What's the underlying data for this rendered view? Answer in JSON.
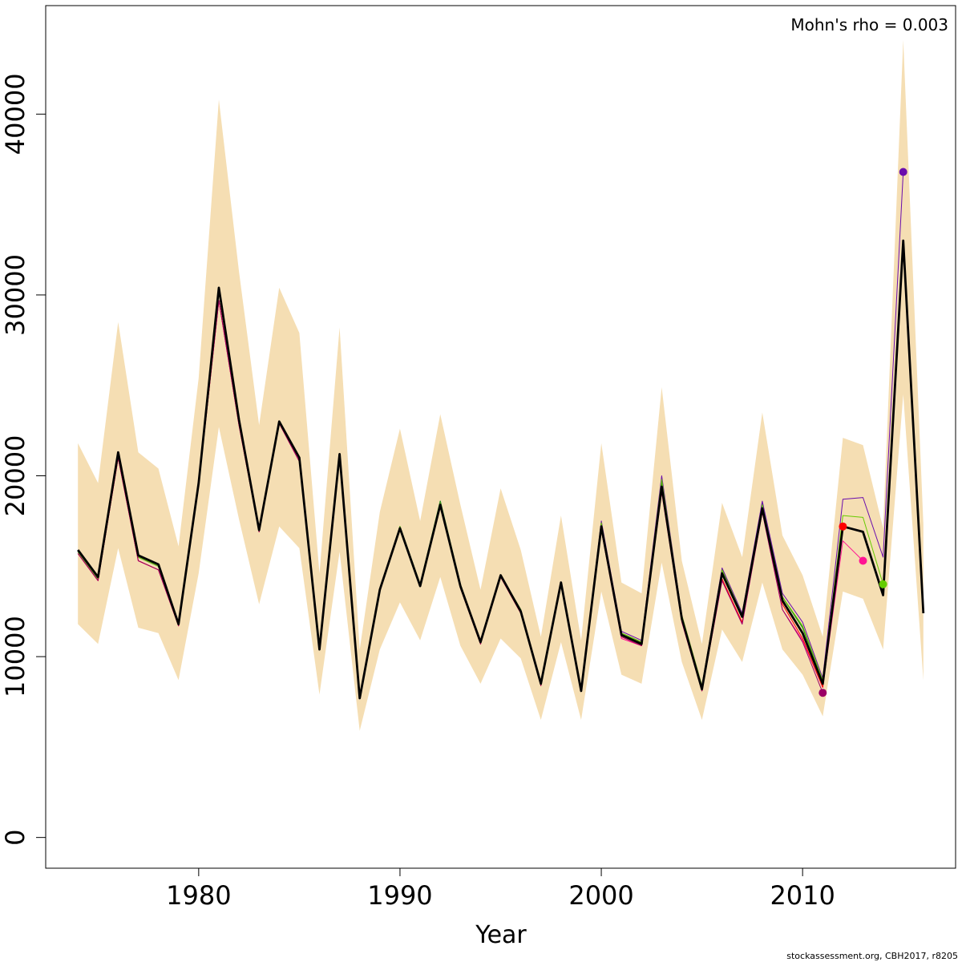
{
  "chart_data": {
    "type": "line",
    "title": "",
    "xlabel": "Year",
    "ylabel": "",
    "annotation": "Mohn's rho = 0.003",
    "footer": "stockassessment.org, CBH2017, r8205",
    "xlim": [
      1972.4,
      2017.6
    ],
    "ylim": [
      -1700,
      46000
    ],
    "x_ticks": [
      1980,
      1990,
      2000,
      2010
    ],
    "y_ticks": [
      0,
      10000,
      20000,
      30000,
      40000
    ],
    "band_color": "#f5deb3",
    "years": [
      1974,
      1975,
      1976,
      1977,
      1978,
      1979,
      1980,
      1981,
      1982,
      1983,
      1984,
      1985,
      1986,
      1987,
      1988,
      1989,
      1990,
      1991,
      1992,
      1993,
      1994,
      1995,
      1996,
      1997,
      1998,
      1999,
      2000,
      2001,
      2002,
      2003,
      2004,
      2005,
      2006,
      2007,
      2008,
      2009,
      2010,
      2011,
      2012,
      2013,
      2014,
      2015,
      2016
    ],
    "confidence_band": {
      "lower": [
        11800,
        10700,
        16000,
        11600,
        11300,
        8700,
        14600,
        22700,
        17600,
        12900,
        17200,
        16000,
        7900,
        15800,
        5900,
        10400,
        13000,
        10900,
        14400,
        10600,
        8500,
        11000,
        9900,
        6500,
        10800,
        6500,
        13600,
        9000,
        8500,
        15200,
        9700,
        6500,
        11500,
        9700,
        14100,
        10400,
        9000,
        6700,
        13600,
        13200,
        10400,
        24500,
        8700
      ],
      "upper": [
        21800,
        19600,
        28500,
        21300,
        20400,
        16100,
        25400,
        40800,
        31300,
        22800,
        30400,
        27900,
        14600,
        28200,
        10400,
        18000,
        22600,
        17500,
        23400,
        18400,
        13700,
        19300,
        15900,
        11100,
        17800,
        10900,
        21800,
        14100,
        13500,
        24900,
        15300,
        10700,
        18500,
        15500,
        23500,
        16700,
        14500,
        11100,
        22100,
        21700,
        17100,
        44100,
        17300
      ]
    },
    "series": [
      {
        "color": "#000000",
        "width": 2.8,
        "values": [
          15900,
          14400,
          21300,
          15600,
          15100,
          11800,
          19600,
          30400,
          23100,
          17000,
          23000,
          21000,
          10400,
          21200,
          7700,
          13700,
          17100,
          13900,
          18400,
          13900,
          10800,
          14500,
          12500,
          8500,
          14100,
          8100,
          17200,
          11200,
          10700,
          19400,
          12100,
          8200,
          14600,
          12200,
          18200,
          13100,
          11300,
          8500,
          17200,
          16900,
          13400,
          33000,
          12400
        ]
      },
      {
        "color": "#228b22",
        "width": 1.3,
        "values": [
          15800,
          14300,
          21100,
          15500,
          15000,
          11800,
          19600,
          30200,
          23000,
          17000,
          23000,
          21000,
          10500,
          21100,
          7800,
          13700,
          17200,
          14000,
          18600,
          14000,
          10800,
          14500,
          12600,
          8500,
          14100,
          8200,
          17300,
          11300,
          10800,
          19700,
          12200,
          8300,
          14800,
          12300,
          18500,
          13300,
          11600,
          8700
        ]
      },
      {
        "color": "#6a0dad",
        "width": 1.0,
        "values": [
          15800,
          14300,
          21100,
          15500,
          15000,
          11800,
          19600,
          30200,
          23000,
          17000,
          23000,
          21000,
          10500,
          21100,
          7800,
          13700,
          17200,
          14000,
          18500,
          14000,
          10800,
          14500,
          12600,
          8500,
          14100,
          8200,
          17500,
          11400,
          10900,
          20000,
          12300,
          8400,
          14900,
          12400,
          18600,
          13500,
          11900,
          8800,
          18700,
          18800,
          15500,
          36800
        ]
      },
      {
        "color": "#66cc00",
        "width": 1.0,
        "values": [
          15800,
          14300,
          21100,
          15500,
          15000,
          11800,
          19600,
          30200,
          23000,
          17000,
          23000,
          21000,
          10500,
          21100,
          7800,
          13700,
          17200,
          14000,
          18500,
          14000,
          10800,
          14500,
          12600,
          8500,
          14100,
          8200,
          17400,
          11300,
          10800,
          19800,
          12300,
          8400,
          14800,
          12300,
          18400,
          13300,
          11700,
          8700,
          17800,
          17700,
          14000
        ]
      },
      {
        "color": "#ff1493",
        "width": 1.0,
        "values": [
          15700,
          14200,
          21000,
          15300,
          14800,
          11700,
          19500,
          29700,
          22800,
          16900,
          22900,
          20800,
          10400,
          21000,
          7700,
          13600,
          17100,
          13900,
          18300,
          13800,
          10700,
          14400,
          12400,
          8400,
          14000,
          8100,
          17000,
          11000,
          10600,
          19100,
          11900,
          8100,
          14200,
          11800,
          18000,
          12600,
          10900,
          8300,
          16400,
          15300
        ]
      },
      {
        "color": "#ff0000",
        "width": 1.0,
        "values": [
          15700,
          14200,
          21000,
          15300,
          14800,
          11700,
          19500,
          29700,
          22800,
          16900,
          22900,
          20800,
          10400,
          21000,
          7700,
          13600,
          17100,
          13900,
          18300,
          13800,
          10700,
          14400,
          12400,
          8400,
          14000,
          8100,
          17000,
          11100,
          10600,
          19200,
          12000,
          8100,
          14300,
          11900,
          18100,
          12900,
          11000,
          8300,
          17200
        ]
      },
      {
        "color": "#9b0066",
        "width": 1.0,
        "values": [
          15700,
          14200,
          21000,
          15300,
          14800,
          11700,
          19500,
          29700,
          22800,
          16900,
          22900,
          20800,
          10400,
          21000,
          7700,
          13600,
          17100,
          13900,
          18300,
          13800,
          10700,
          14400,
          12400,
          8400,
          14000,
          8100,
          17000,
          11100,
          10600,
          19200,
          12000,
          8100,
          14200,
          11800,
          18000,
          12600,
          10800,
          8000
        ]
      }
    ],
    "retro_endpoints": [
      {
        "year": 2011,
        "value": 8000,
        "color": "#9b0066"
      },
      {
        "year": 2012,
        "value": 17200,
        "color": "#ff0000"
      },
      {
        "year": 2013,
        "value": 15300,
        "color": "#ff1493"
      },
      {
        "year": 2014,
        "value": 14000,
        "color": "#66cc00"
      },
      {
        "year": 2015,
        "value": 36800,
        "color": "#6a0dad"
      }
    ]
  }
}
